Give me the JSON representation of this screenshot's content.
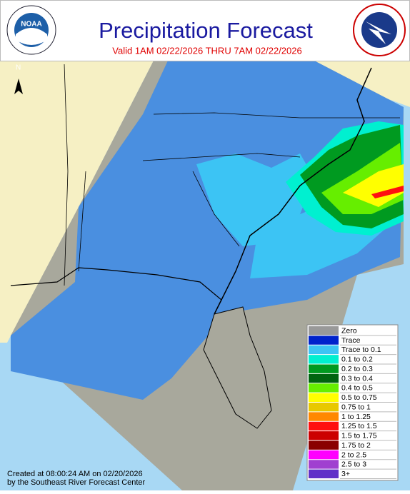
{
  "header": {
    "title": "Precipitation Forecast",
    "subtitle": "Valid 1AM 02/22/2026 THRU 7AM 02/22/2026",
    "left_logo": "NOAA"
  },
  "map": {
    "north_label": "N"
  },
  "legend": {
    "items": [
      {
        "label": "Zero",
        "color": "#999999"
      },
      {
        "label": "Trace",
        "color": "#0022cc"
      },
      {
        "label": "Trace to 0.1",
        "color": "#3cc4f4"
      },
      {
        "label": "0.1 to 0.2",
        "color": "#00f0d0"
      },
      {
        "label": "0.2 to 0.3",
        "color": "#009a20"
      },
      {
        "label": "0.3 to 0.4",
        "color": "#006410"
      },
      {
        "label": "0.4 to 0.5",
        "color": "#66ee00"
      },
      {
        "label": "0.5 to 0.75",
        "color": "#ffff00"
      },
      {
        "label": "0.75 to 1",
        "color": "#e8c800"
      },
      {
        "label": "1 to 1.25",
        "color": "#ff8800"
      },
      {
        "label": "1.25 to 1.5",
        "color": "#ff1010"
      },
      {
        "label": "1.5 to 1.75",
        "color": "#cc0000"
      },
      {
        "label": "1.75 to 2",
        "color": "#8a0000"
      },
      {
        "label": "2 to 2.5",
        "color": "#ff00ff"
      },
      {
        "label": "2.5 to 3",
        "color": "#a040d0"
      },
      {
        "label": "3+",
        "color": "#6030c8"
      }
    ]
  },
  "footer": {
    "lines": [
      "Created at 08:00:24 AM on 02/20/2026",
      "by the Southeast River Forecast Center"
    ]
  }
}
